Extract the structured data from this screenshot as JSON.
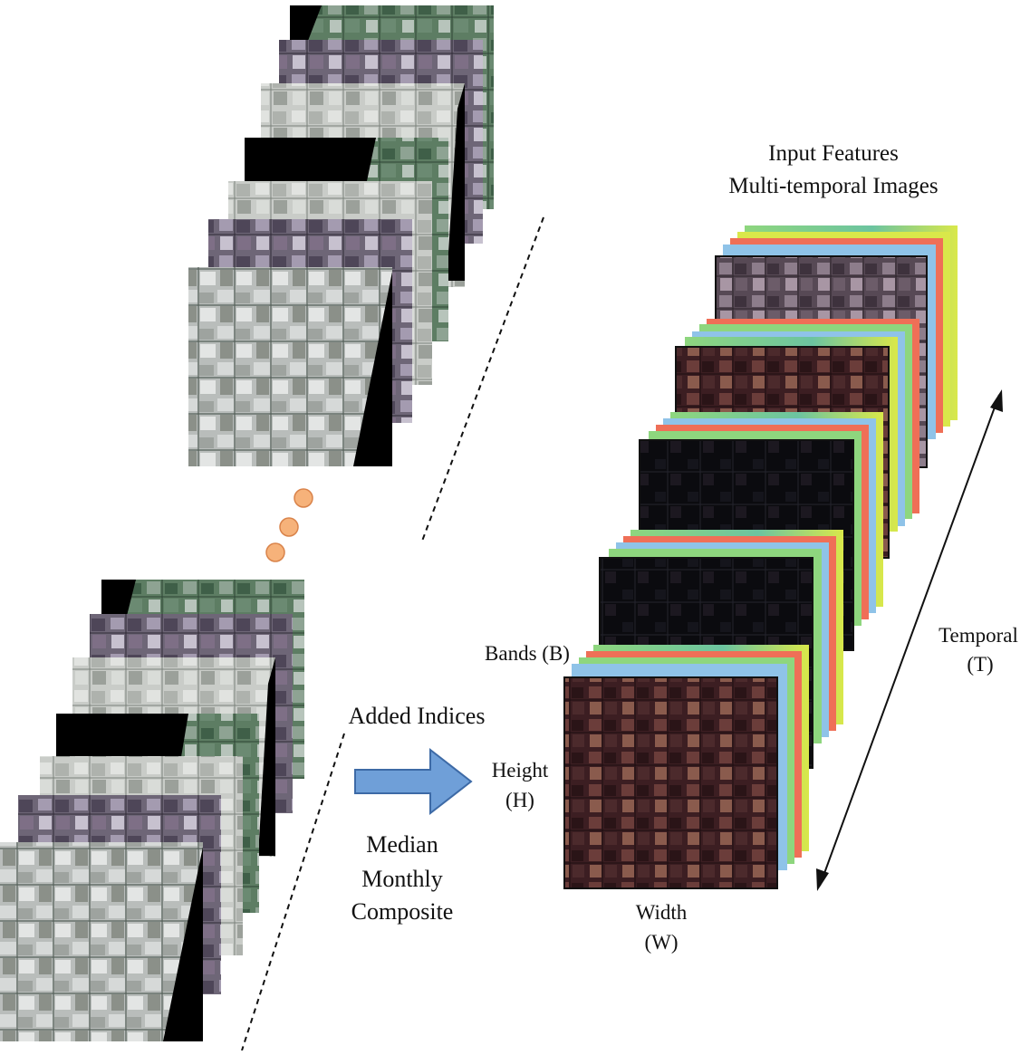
{
  "title": {
    "line1": "Input Features",
    "line2": "Multi-temporal Images"
  },
  "labels": {
    "added_indices": "Added Indices",
    "composite_line1": "Median",
    "composite_line2": "Monthly",
    "composite_line3": "Composite",
    "bands": "Bands (B)",
    "height_line1": "Height",
    "height_line2": "(H)",
    "width_line1": "Width",
    "width_line2": "(W)",
    "temporal_line1": "Temporal",
    "temporal_line2": "(T)"
  },
  "colors": {
    "arrow_fill": "#6f9fd8",
    "dot_fill": "#f6b27a",
    "dot_stroke": "#d9834a",
    "band_red": "#ef6f57",
    "band_blue": "#8fc3e8",
    "band_green": "#8ed67e",
    "band_yellow": "#d9e84a"
  }
}
